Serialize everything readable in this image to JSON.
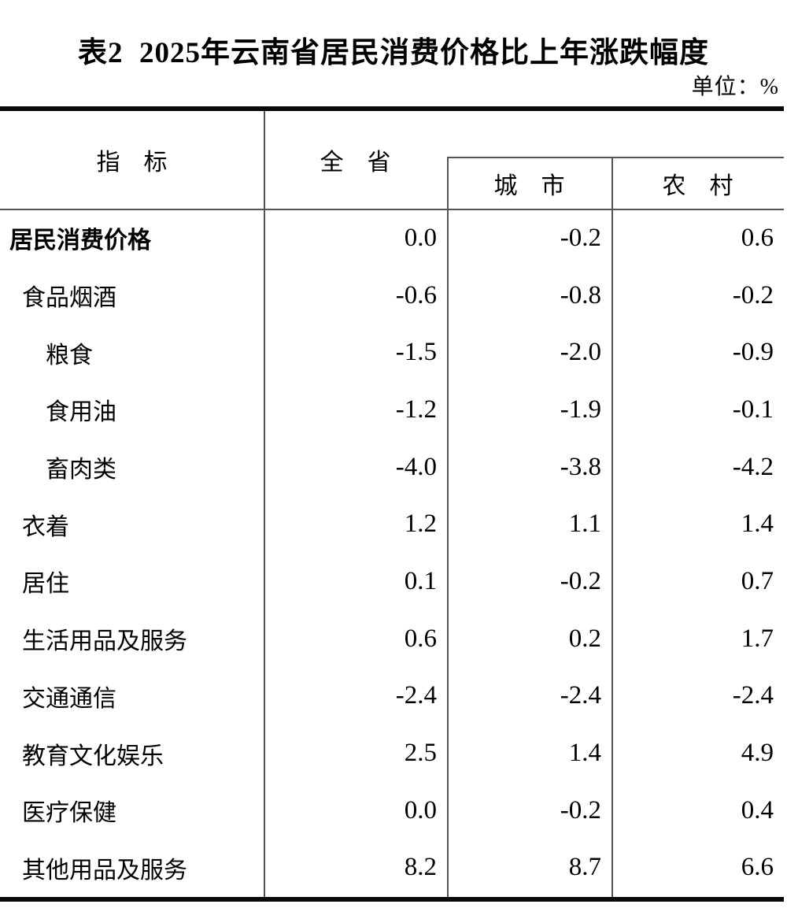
{
  "title": "表2  2025年云南省居民消费价格比上年涨跌幅度",
  "unit": "单位：%",
  "table": {
    "columns": {
      "indicator": "指　标",
      "province": "全　省",
      "city": "城　市",
      "rural": "农　村"
    },
    "rows": [
      {
        "label": "居民消费价格",
        "indent": 0,
        "province": "0.0",
        "city": "-0.2",
        "rural": "0.6"
      },
      {
        "label": "食品烟酒",
        "indent": 1,
        "province": "-0.6",
        "city": "-0.8",
        "rural": "-0.2"
      },
      {
        "label": "粮食",
        "indent": 2,
        "province": "-1.5",
        "city": "-2.0",
        "rural": "-0.9"
      },
      {
        "label": "食用油",
        "indent": 2,
        "province": "-1.2",
        "city": "-1.9",
        "rural": "-0.1"
      },
      {
        "label": "畜肉类",
        "indent": 2,
        "province": "-4.0",
        "city": "-3.8",
        "rural": "-4.2"
      },
      {
        "label": "衣着",
        "indent": 1,
        "province": "1.2",
        "city": "1.1",
        "rural": "1.4"
      },
      {
        "label": "居住",
        "indent": 1,
        "province": "0.1",
        "city": "-0.2",
        "rural": "0.7"
      },
      {
        "label": "生活用品及服务",
        "indent": 1,
        "province": "0.6",
        "city": "0.2",
        "rural": "1.7"
      },
      {
        "label": "交通通信",
        "indent": 1,
        "province": "-2.4",
        "city": "-2.4",
        "rural": "-2.4"
      },
      {
        "label": "教育文化娱乐",
        "indent": 1,
        "province": "2.5",
        "city": "1.4",
        "rural": "4.9"
      },
      {
        "label": "医疗保健",
        "indent": 1,
        "province": "0.0",
        "city": "-0.2",
        "rural": "0.4"
      },
      {
        "label": "其他用品及服务",
        "indent": 1,
        "province": "8.2",
        "city": "8.7",
        "rural": "6.6"
      }
    ]
  }
}
